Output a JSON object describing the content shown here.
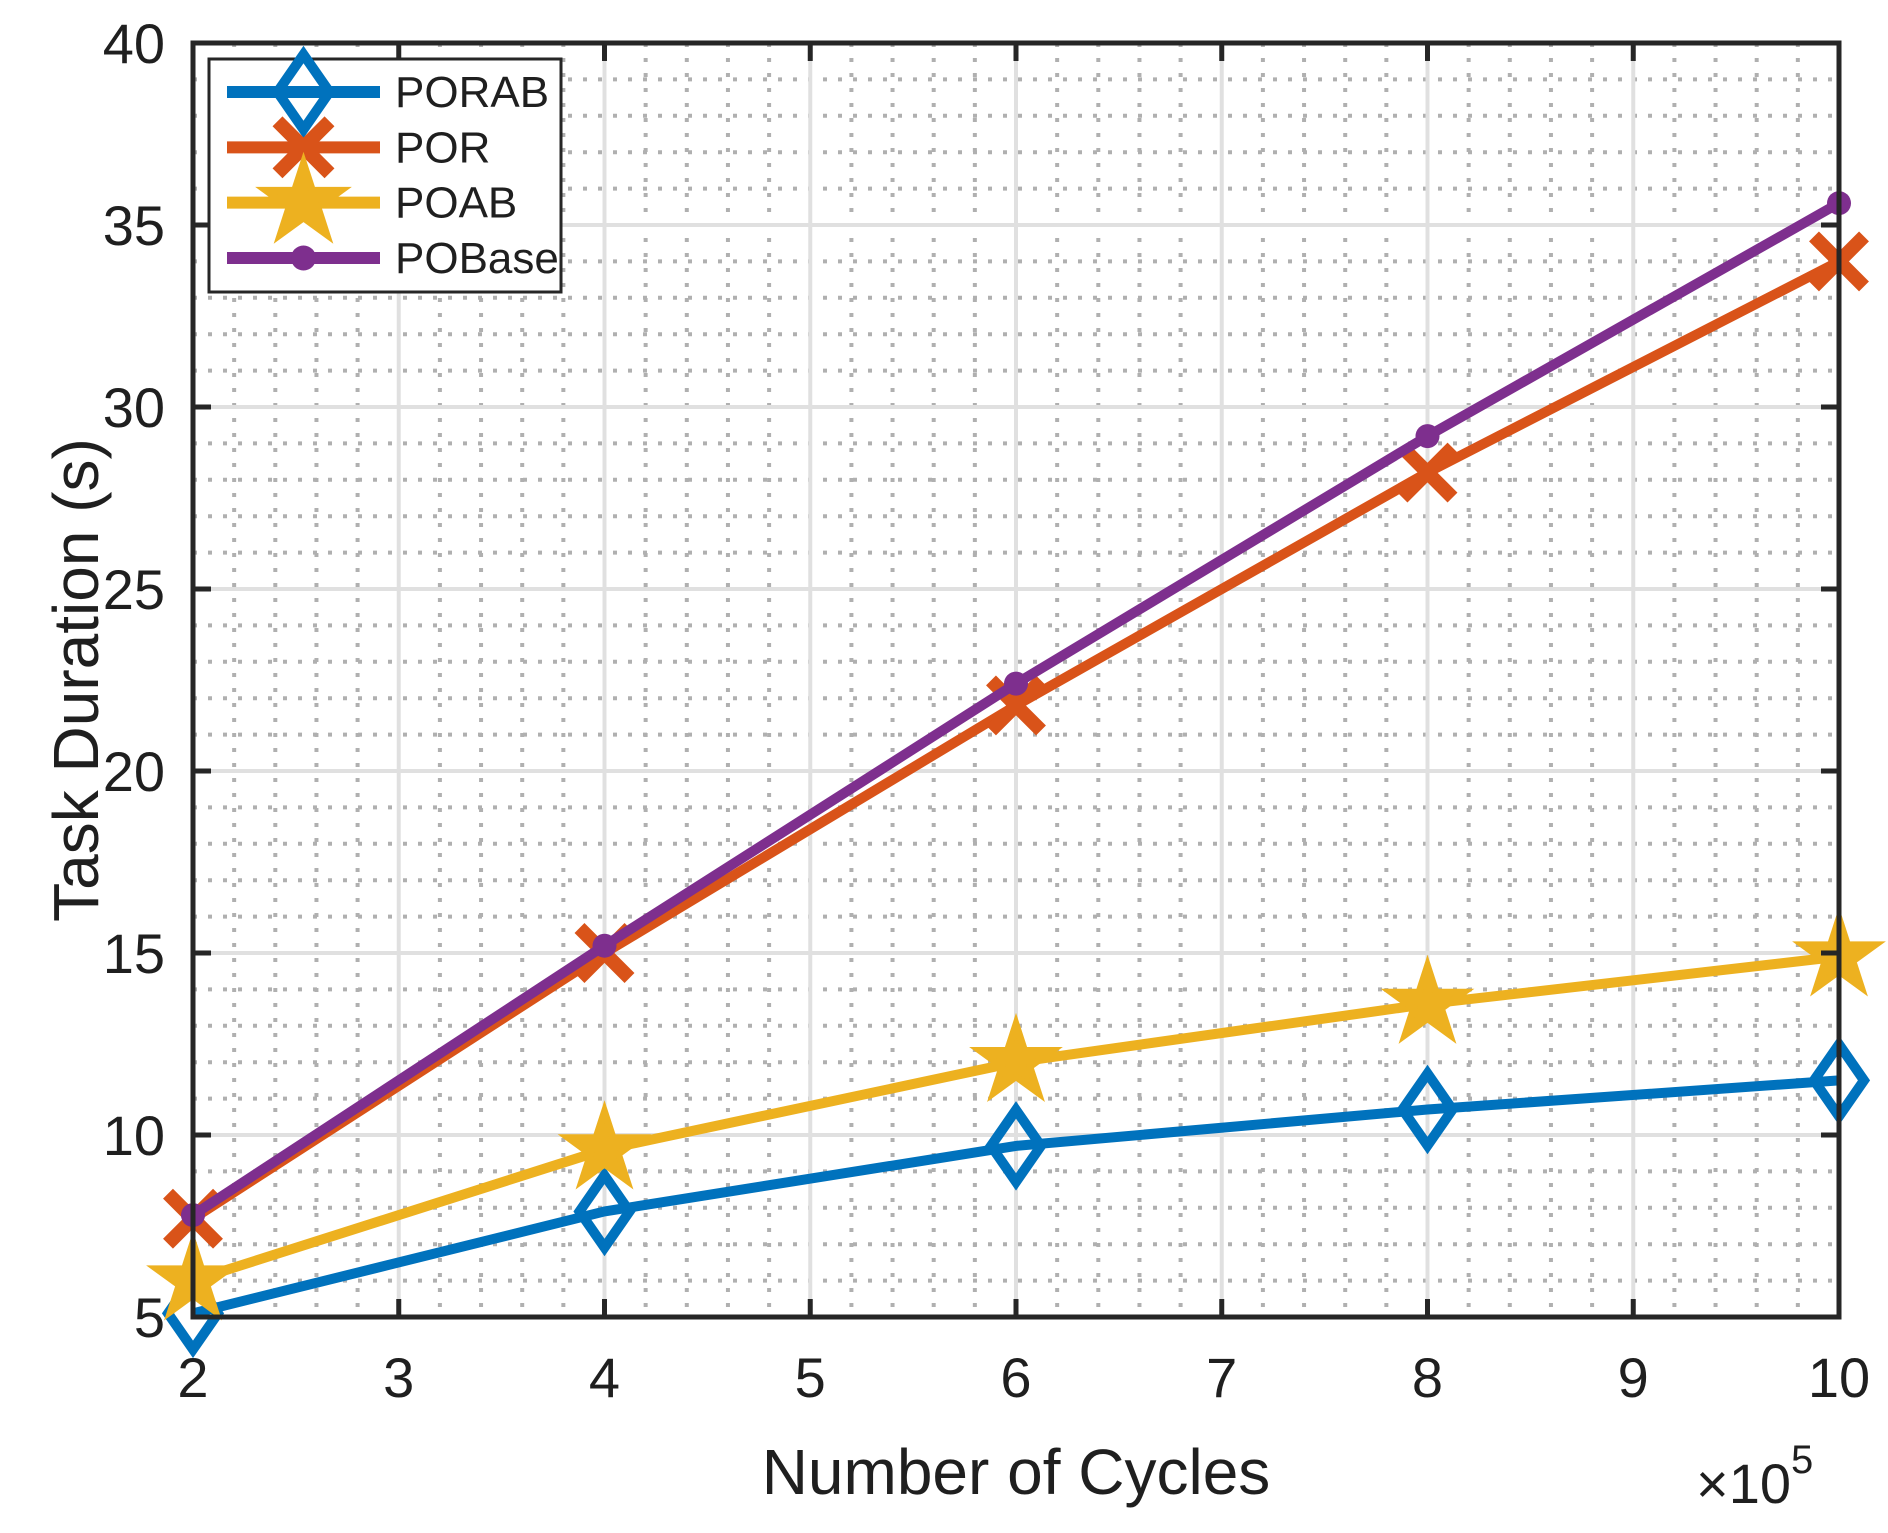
{
  "chart_data": {
    "type": "line",
    "title": "",
    "xlabel": "Number of Cycles",
    "ylabel": "Task Duration (s)",
    "x_axis_multiplier": {
      "base": "×10",
      "exponent": "5"
    },
    "xlim": [
      2,
      10
    ],
    "ylim": [
      5,
      40
    ],
    "xticks": [
      2,
      3,
      4,
      5,
      6,
      7,
      8,
      9,
      10
    ],
    "yticks": [
      5,
      10,
      15,
      20,
      25,
      30,
      35,
      40
    ],
    "grid": {
      "major": true,
      "minor": true,
      "minor_x_step": 0.2,
      "minor_y_step": 1
    },
    "legend_position": "top-left",
    "x": [
      2,
      4,
      6,
      8,
      10
    ],
    "x_unit_scale": 100000,
    "series": [
      {
        "name": "PORAB",
        "color": "#0072BD",
        "marker": "diamond",
        "values": [
          5.1,
          7.9,
          9.7,
          10.7,
          11.5
        ]
      },
      {
        "name": "POR",
        "color": "#D95319",
        "marker": "x",
        "values": [
          7.7,
          15.0,
          21.8,
          28.2,
          34.0
        ]
      },
      {
        "name": "POAB",
        "color": "#EDB120",
        "marker": "star",
        "values": [
          6.0,
          9.6,
          12.0,
          13.6,
          14.9
        ]
      },
      {
        "name": "POBase",
        "color": "#7E2F8E",
        "marker": "circle",
        "values": [
          7.8,
          15.2,
          22.4,
          29.2,
          35.6
        ]
      }
    ],
    "style": {
      "axis_color": "#262626",
      "grid_major_color": "#e0e0e0",
      "grid_minor_color": "#b0b0b0",
      "background": "#ffffff",
      "text_color": "#1f1f1f"
    }
  }
}
